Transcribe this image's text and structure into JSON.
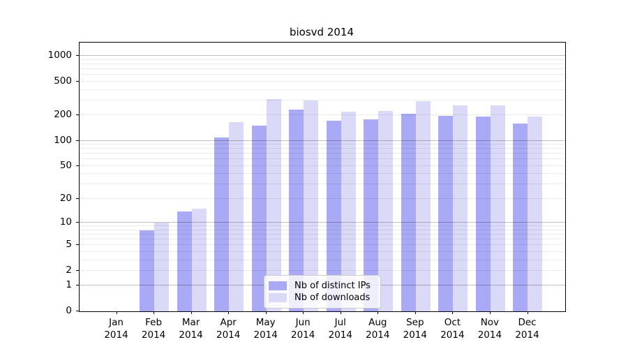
{
  "chart_data": {
    "type": "bar",
    "title": "biosvd 2014",
    "categories": [
      {
        "month": "Jan",
        "year": "2014"
      },
      {
        "month": "Feb",
        "year": "2014"
      },
      {
        "month": "Mar",
        "year": "2014"
      },
      {
        "month": "Apr",
        "year": "2014"
      },
      {
        "month": "May",
        "year": "2014"
      },
      {
        "month": "Jun",
        "year": "2014"
      },
      {
        "month": "Jul",
        "year": "2014"
      },
      {
        "month": "Aug",
        "year": "2014"
      },
      {
        "month": "Sep",
        "year": "2014"
      },
      {
        "month": "Oct",
        "year": "2014"
      },
      {
        "month": "Nov",
        "year": "2014"
      },
      {
        "month": "Dec",
        "year": "2014"
      }
    ],
    "series": [
      {
        "name": "Nb of distinct IPs",
        "color": "#a9a9f5",
        "values": [
          0,
          8,
          14,
          110,
          150,
          235,
          172,
          180,
          210,
          195,
          192,
          160
        ]
      },
      {
        "name": "Nb of downloads",
        "color": "#dadaf8",
        "values": [
          0,
          10,
          15,
          165,
          310,
          300,
          220,
          225,
          295,
          262,
          260,
          192
        ]
      }
    ],
    "xlabel": "",
    "ylabel": "",
    "y_scale": "log10(1+v)",
    "ylim": [
      0,
      1432
    ],
    "y_ticks": [
      {
        "value": 0,
        "label": "0"
      },
      {
        "value": 1,
        "label": "1"
      },
      {
        "value": 2,
        "label": "2"
      },
      {
        "value": 5,
        "label": "5"
      },
      {
        "value": 10,
        "label": "10"
      },
      {
        "value": 20,
        "label": "20"
      },
      {
        "value": 50,
        "label": "50"
      },
      {
        "value": 100,
        "label": "100"
      },
      {
        "value": 200,
        "label": "200"
      },
      {
        "value": 500,
        "label": "500"
      },
      {
        "value": 1000,
        "label": "1000"
      }
    ],
    "y_major_gridline_values": [
      1,
      10,
      100,
      1000
    ],
    "y_minor_gridline_values": [
      2,
      3,
      4,
      5,
      6,
      7,
      8,
      9,
      20,
      30,
      40,
      50,
      60,
      70,
      80,
      90,
      200,
      300,
      400,
      500,
      600,
      700,
      800,
      900
    ],
    "grid": "on",
    "legend_position": "lower center",
    "colors": {
      "distinct_ips_bar": "#a9a9f5",
      "downloads_bar": "#dadaf8",
      "axis_line": "#000000",
      "major_gridline": "#c2c2c2",
      "minor_gridline": "#ebebeb",
      "legend_border": "#cccccc"
    }
  }
}
